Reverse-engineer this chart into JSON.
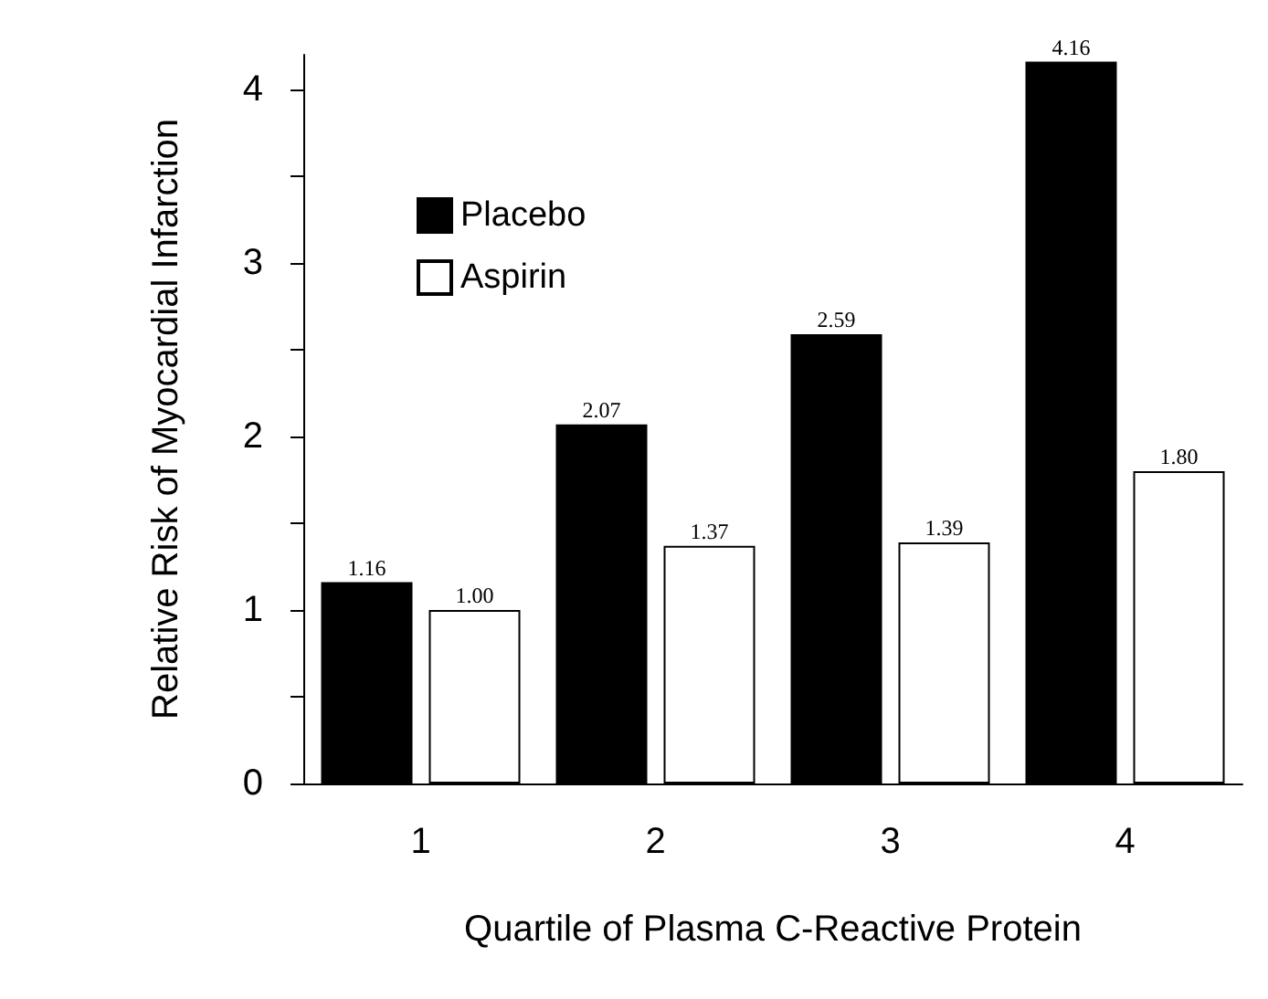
{
  "chart_data": {
    "type": "bar",
    "xlabel": "Quartile of Plasma C-Reactive Protein",
    "ylabel": "Relative Risk of Myocardial Infarction",
    "categories": [
      "1",
      "2",
      "3",
      "4"
    ],
    "series": [
      {
        "name": "Placebo",
        "color": "#000000",
        "values": [
          1.16,
          2.07,
          2.59,
          4.16
        ],
        "value_labels": [
          "1.16",
          "2.07",
          "2.59",
          "4.16"
        ]
      },
      {
        "name": "Aspirin",
        "color": "#ffffff",
        "values": [
          1.0,
          1.37,
          1.39,
          1.8
        ],
        "value_labels": [
          "1.00",
          "1.37",
          "1.39",
          "1.80"
        ]
      }
    ],
    "ylim": [
      0,
      4.2
    ],
    "yticks": [
      0,
      {
        "value": 0.5,
        "label": null
      },
      1,
      {
        "value": 1.5,
        "label": null
      },
      2,
      {
        "value": 2.5,
        "label": null
      },
      3,
      {
        "value": 3.5,
        "label": null
      },
      4
    ],
    "legend": "top left",
    "grid": false
  }
}
